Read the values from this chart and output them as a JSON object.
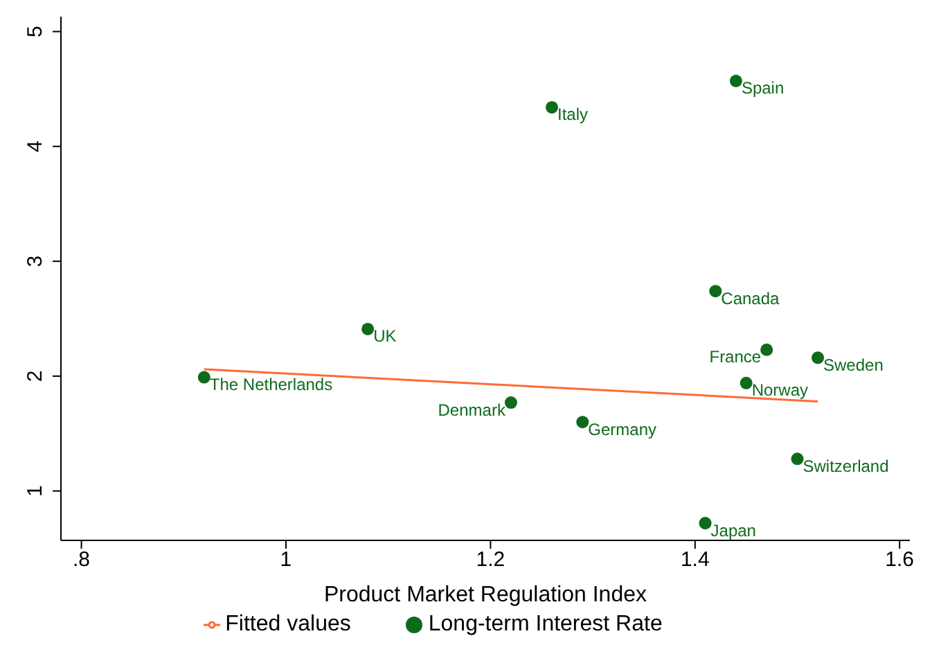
{
  "chart_data": {
    "type": "scatter",
    "xlabel": "Product Market Regulation Index",
    "xlim": [
      0.78,
      1.61
    ],
    "xticks": [
      {
        "value": 0.8,
        "label": ".8"
      },
      1,
      1.2,
      1.4,
      1.6
    ],
    "ylim": [
      0.57,
      5.13
    ],
    "yticks": [
      1,
      2,
      3,
      4,
      5
    ],
    "grid": false,
    "legend": "bottom",
    "series": [
      {
        "name": "Long-term Interest Rate",
        "marker": "circle",
        "color": "#0e6b1c",
        "x": [
          1.44,
          1.26,
          1.42,
          1.08,
          1.47,
          1.52,
          0.92,
          1.45,
          1.22,
          1.29,
          1.5,
          1.41
        ],
        "values": [
          4.57,
          4.34,
          2.74,
          2.41,
          2.23,
          2.16,
          1.99,
          1.94,
          1.77,
          1.6,
          1.28,
          0.72
        ]
      },
      {
        "name": "Fitted values",
        "type": "line",
        "color": "#ff6a33",
        "x": [
          0.92,
          1.52
        ],
        "values": [
          2.06,
          1.78
        ]
      }
    ],
    "annotations": [
      {
        "text": "Spain",
        "x": 1.44,
        "y": 4.57
      },
      {
        "text": "Italy",
        "x": 1.26,
        "y": 4.34
      },
      {
        "text": "Canada",
        "x": 1.42,
        "y": 2.74
      },
      {
        "text": "UK",
        "x": 1.08,
        "y": 2.41
      },
      {
        "text": "France",
        "x": 1.47,
        "y": 2.23
      },
      {
        "text": "Sweden",
        "x": 1.52,
        "y": 2.16
      },
      {
        "text": "The Netherlands",
        "x": 0.92,
        "y": 1.99
      },
      {
        "text": "Norway",
        "x": 1.45,
        "y": 1.94
      },
      {
        "text": "Denmark",
        "x": 1.22,
        "y": 1.77
      },
      {
        "text": "Germany",
        "x": 1.29,
        "y": 1.6
      },
      {
        "text": "Switzerland",
        "x": 1.5,
        "y": 1.28
      },
      {
        "text": "Japan",
        "x": 1.41,
        "y": 0.72
      }
    ]
  }
}
